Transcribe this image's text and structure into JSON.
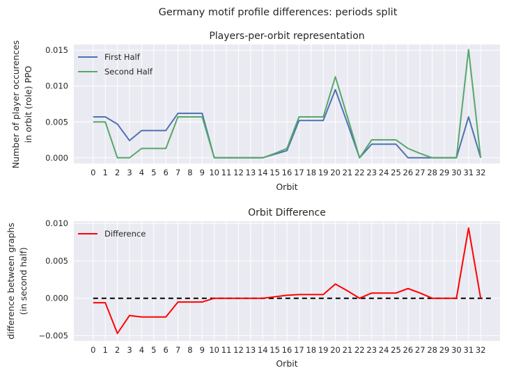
{
  "suptitle": "Germany motif profile differences: periods split",
  "chart_data": [
    {
      "type": "line",
      "title": "Players-per-orbit representation",
      "xlabel": "Orbit",
      "ylabel": [
        "Number of player occurences",
        "in orbit (role) PPO"
      ],
      "x": [
        0,
        1,
        2,
        3,
        4,
        5,
        6,
        7,
        8,
        9,
        10,
        11,
        12,
        13,
        14,
        15,
        16,
        17,
        18,
        19,
        20,
        21,
        22,
        23,
        24,
        25,
        26,
        27,
        28,
        29,
        30,
        31,
        32
      ],
      "xlim": [
        -1.6,
        33.6
      ],
      "ylim": [
        -0.0008,
        0.0158
      ],
      "yticks": [
        0.0,
        0.005,
        0.01,
        0.015
      ],
      "ytick_labels": [
        "0.000",
        "0.005",
        "0.010",
        "0.015"
      ],
      "grid": true,
      "legend": "top-left",
      "series": [
        {
          "name": "First Half",
          "color": "#4c72b0",
          "values": [
            0.0057,
            0.0057,
            0.0047,
            0.0024,
            0.0038,
            0.0038,
            0.0038,
            0.0062,
            0.0062,
            0.0062,
            0,
            0,
            0,
            0,
            0,
            0.0005,
            0.001,
            0.0052,
            0.0052,
            0.0052,
            0.0095,
            0.0048,
            0,
            0.0019,
            0.0019,
            0.0019,
            0,
            0,
            0,
            0,
            0,
            0.0057,
            0
          ]
        },
        {
          "name": "Second Half",
          "color": "#55a868",
          "values": [
            0.005,
            0.005,
            0,
            0,
            0.0013,
            0.0013,
            0.0013,
            0.0057,
            0.0057,
            0.0057,
            0,
            0,
            0,
            0,
            0,
            0.0006,
            0.0013,
            0.0057,
            0.0057,
            0.0057,
            0.0113,
            0.0057,
            0,
            0.0025,
            0.0025,
            0.0025,
            0.0013,
            0.0006,
            0,
            0,
            0,
            0.0151,
            0
          ]
        }
      ]
    },
    {
      "type": "line",
      "title": "Orbit Difference",
      "xlabel": "Orbit",
      "ylabel": [
        "difference between graphs",
        "(in second half)"
      ],
      "x": [
        0,
        1,
        2,
        3,
        4,
        5,
        6,
        7,
        8,
        9,
        10,
        11,
        12,
        13,
        14,
        15,
        16,
        17,
        18,
        19,
        20,
        21,
        22,
        23,
        24,
        25,
        26,
        27,
        28,
        29,
        30,
        31,
        32
      ],
      "xlim": [
        -1.6,
        33.6
      ],
      "ylim": [
        -0.0057,
        0.0103
      ],
      "yticks": [
        -0.005,
        0.0,
        0.005,
        0.01
      ],
      "ytick_labels": [
        "−0.005",
        "0.000",
        "0.005",
        "0.010"
      ],
      "grid": true,
      "legend": "top-left",
      "series": [
        {
          "name": "Difference",
          "color": "#ff0000",
          "values": [
            -0.0006,
            -0.0006,
            -0.0047,
            -0.0023,
            -0.0025,
            -0.0025,
            -0.0025,
            -0.0005,
            -0.0005,
            -0.0005,
            0,
            0,
            0,
            0,
            0,
            0.0002,
            0.0004,
            0.0005,
            0.0005,
            0.0005,
            0.0019,
            0.001,
            0,
            0.0007,
            0.0007,
            0.0007,
            0.0013,
            0.0007,
            0,
            0,
            0,
            0.0094,
            0
          ]
        }
      ],
      "reference_line": {
        "y": 0,
        "x_from": 0,
        "x_to": 33,
        "style": "dashed",
        "color": "#000000"
      }
    }
  ]
}
